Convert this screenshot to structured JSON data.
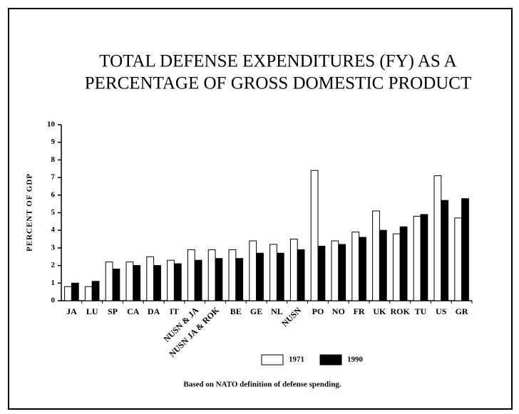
{
  "chart_data": {
    "type": "bar",
    "title": [
      "TOTAL DEFENSE EXPENDITURES (FY) AS A",
      "PERCENTAGE OF GROSS DOMESTIC PRODUCT"
    ],
    "y_label": "PERCENT OF GDP",
    "footnote": "Based on NATO definition of defense spending.",
    "categories": [
      "JA",
      "LU",
      "SP",
      "CA",
      "DA",
      "IT",
      "NUSN & JA",
      "NUSN JA & ROK",
      "BE",
      "GE",
      "NL",
      "NUSN",
      "PO",
      "NO",
      "FR",
      "UK",
      "ROK",
      "TU",
      "US",
      "GR"
    ],
    "series": [
      {
        "name": "1971",
        "color": "#ffffff",
        "values": [
          0.8,
          0.8,
          2.2,
          2.2,
          2.5,
          2.3,
          2.9,
          2.9,
          2.9,
          3.4,
          3.2,
          3.5,
          7.4,
          3.4,
          3.9,
          5.1,
          3.8,
          4.8,
          7.1,
          4.7
        ]
      },
      {
        "name": "1990",
        "color": "#000000",
        "values": [
          1.0,
          1.1,
          1.8,
          2.0,
          2.0,
          2.1,
          2.3,
          2.4,
          2.4,
          2.7,
          2.7,
          2.9,
          3.1,
          3.2,
          3.6,
          4.0,
          4.2,
          4.9,
          5.7,
          5.8
        ]
      }
    ],
    "ylim": [
      0,
      10
    ],
    "yticks": [
      0,
      1,
      2,
      3,
      4,
      5,
      6,
      7,
      8,
      9,
      10
    ]
  }
}
